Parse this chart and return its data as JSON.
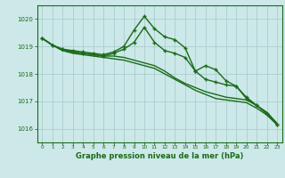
{
  "xlabel": "Graphe pression niveau de la mer (hPa)",
  "ylim": [
    1015.5,
    1020.5
  ],
  "xlim": [
    -0.5,
    23.5
  ],
  "yticks": [
    1016,
    1017,
    1018,
    1019,
    1020
  ],
  "xticks": [
    0,
    1,
    2,
    3,
    4,
    5,
    6,
    7,
    8,
    9,
    10,
    11,
    12,
    13,
    14,
    15,
    16,
    17,
    18,
    19,
    20,
    21,
    22,
    23
  ],
  "bg_color": "#cce8e8",
  "grid_color": "#aacece",
  "line_color": "#1a6b1a",
  "series": [
    {
      "data": [
        1019.3,
        1019.05,
        1018.85,
        1018.75,
        1018.7,
        1018.65,
        1018.6,
        1018.55,
        1018.5,
        1018.4,
        1018.3,
        1018.2,
        1018.0,
        1017.8,
        1017.6,
        1017.4,
        1017.25,
        1017.1,
        1017.05,
        1017.0,
        1016.95,
        1016.75,
        1016.5,
        1016.15
      ],
      "marker": false,
      "linewidth": 1.0
    },
    {
      "data": [
        1019.3,
        1019.05,
        1018.85,
        1018.8,
        1018.75,
        1018.7,
        1018.65,
        1018.65,
        1018.6,
        1018.5,
        1018.4,
        1018.3,
        1018.1,
        1017.85,
        1017.65,
        1017.5,
        1017.35,
        1017.25,
        1017.15,
        1017.1,
        1017.05,
        1016.85,
        1016.6,
        1016.2
      ],
      "marker": false,
      "linewidth": 1.0
    },
    {
      "data": [
        1019.3,
        1019.05,
        1018.9,
        1018.85,
        1018.8,
        1018.75,
        1018.7,
        1018.8,
        1019.0,
        1019.6,
        1020.1,
        1019.65,
        1019.35,
        1019.25,
        1018.95,
        1018.1,
        1018.3,
        1018.15,
        1017.75,
        1017.55,
        1017.15,
        1016.85,
        1016.55,
        1016.15
      ],
      "marker": true,
      "linewidth": 1.0
    },
    {
      "data": [
        1019.3,
        1019.05,
        1018.9,
        1018.8,
        1018.75,
        1018.7,
        1018.65,
        1018.75,
        1018.9,
        1019.15,
        1019.7,
        1019.15,
        1018.85,
        1018.75,
        1018.6,
        1018.1,
        1017.8,
        1017.7,
        1017.6,
        1017.55,
        1017.1,
        1016.85,
        1016.55,
        1016.15
      ],
      "marker": true,
      "linewidth": 1.0
    }
  ]
}
